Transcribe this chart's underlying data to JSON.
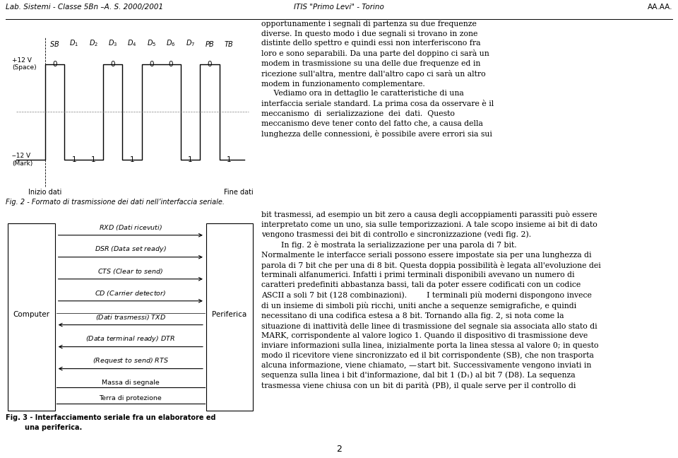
{
  "page_bg": "#ffffff",
  "header_left": "Lab. Sistemi - Classe 5Bn –A. S. 2000/2001",
  "header_center": "ITIS \"Primo Levi\" - Torino",
  "header_right": "AA.AA.",
  "footer_page": "2",
  "fig2_title": "Fig. 2 - Formato di trasmissione dei dati nell’interfaccia seriale.",
  "fig2_labels_math": [
    "$SB$",
    "$D_1$",
    "$D_2$",
    "$D_3$",
    "$D_4$",
    "$D_5$",
    "$D_6$",
    "$D_7$",
    "$PB$",
    "$TB$"
  ],
  "fig2_bits": [
    0,
    1,
    1,
    0,
    1,
    0,
    0,
    1,
    0,
    1
  ],
  "fig2_high_label": "+12 V\n(Space)",
  "fig2_low_label": "‒12 V\n(Mark)",
  "fig2_start_label": "Inizio dati",
  "fig2_end_label": "Fine dati",
  "fig3_left_label": "Computer",
  "fig3_right_label": "Periferica",
  "right_text_upper": "opportunamente i segnali di partenza su due frequenze\ndiverse. In questo modo i due segnali si trovano in zone\ndistinte dello spettro e quindi essi non interferiscono fra\nloro e sono separabili. Da una parte del doppino ci sarà un\nmodem in trasmissione su una delle due frequenze ed in\nricezione sull'altra, mentre dall'altro capo ci sarà un altro\nmodem in funzionamento complementare.\n     Vediamo ora in dettaglio le caratteristiche di una\ninterfaccia seriale standard. La prima cosa da osservare è il\nmeccanismo  di  serializzazione  dei  dati.  Questo\nmeccanismo deve tener conto del fatto che, a causa della\nlunghezza delle connessioni, è possibile avere errori sia sui"
}
